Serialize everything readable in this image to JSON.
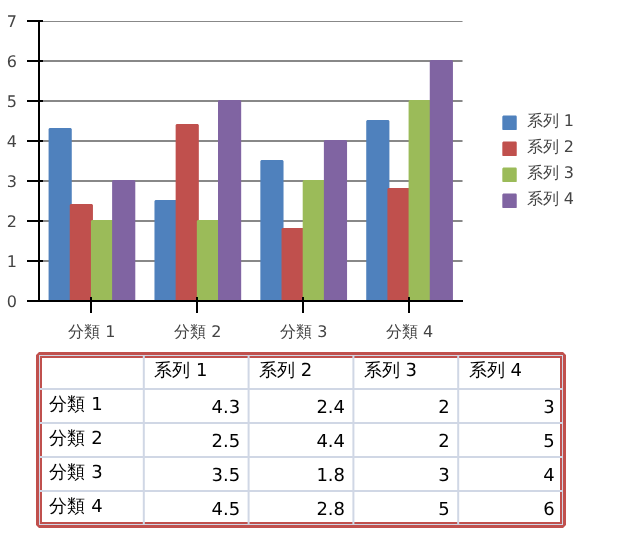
{
  "chart_data": [
    {
      "type": "bar",
      "categories": [
        "分類 1",
        "分類 2",
        "分類 3",
        "分類 4"
      ],
      "series": [
        {
          "name": "系列 1",
          "color": "#4f81bd",
          "values": [
            4.3,
            2.5,
            3.5,
            4.5
          ]
        },
        {
          "name": "系列 2",
          "color": "#c0504d",
          "values": [
            2.4,
            4.4,
            1.8,
            2.8
          ]
        },
        {
          "name": "系列 3",
          "color": "#9bbb59",
          "values": [
            2,
            2,
            3,
            5
          ]
        },
        {
          "name": "系列 4",
          "color": "#8064a2",
          "values": [
            3,
            5,
            4,
            6
          ]
        }
      ],
      "ylim": [
        0,
        7
      ],
      "yticks": [
        0,
        1,
        2,
        3,
        4,
        5,
        6,
        7
      ],
      "grid": "y",
      "legend": "right"
    },
    {
      "type": "other",
      "categories": [
        "分類 1",
        "分類 2",
        "分類 3",
        "分類 4"
      ],
      "series": [
        {
          "name": "系列 1",
          "values": [
            4.3,
            2.5,
            3.5,
            4.5
          ]
        },
        {
          "name": "系列 2",
          "values": [
            2.4,
            4.4,
            1.8,
            2.8
          ]
        },
        {
          "name": "系列 3",
          "values": [
            2,
            2,
            3,
            5
          ]
        },
        {
          "name": "系列 4",
          "values": [
            3,
            5,
            4,
            6
          ]
        }
      ],
      "data_labels": true
    }
  ]
}
